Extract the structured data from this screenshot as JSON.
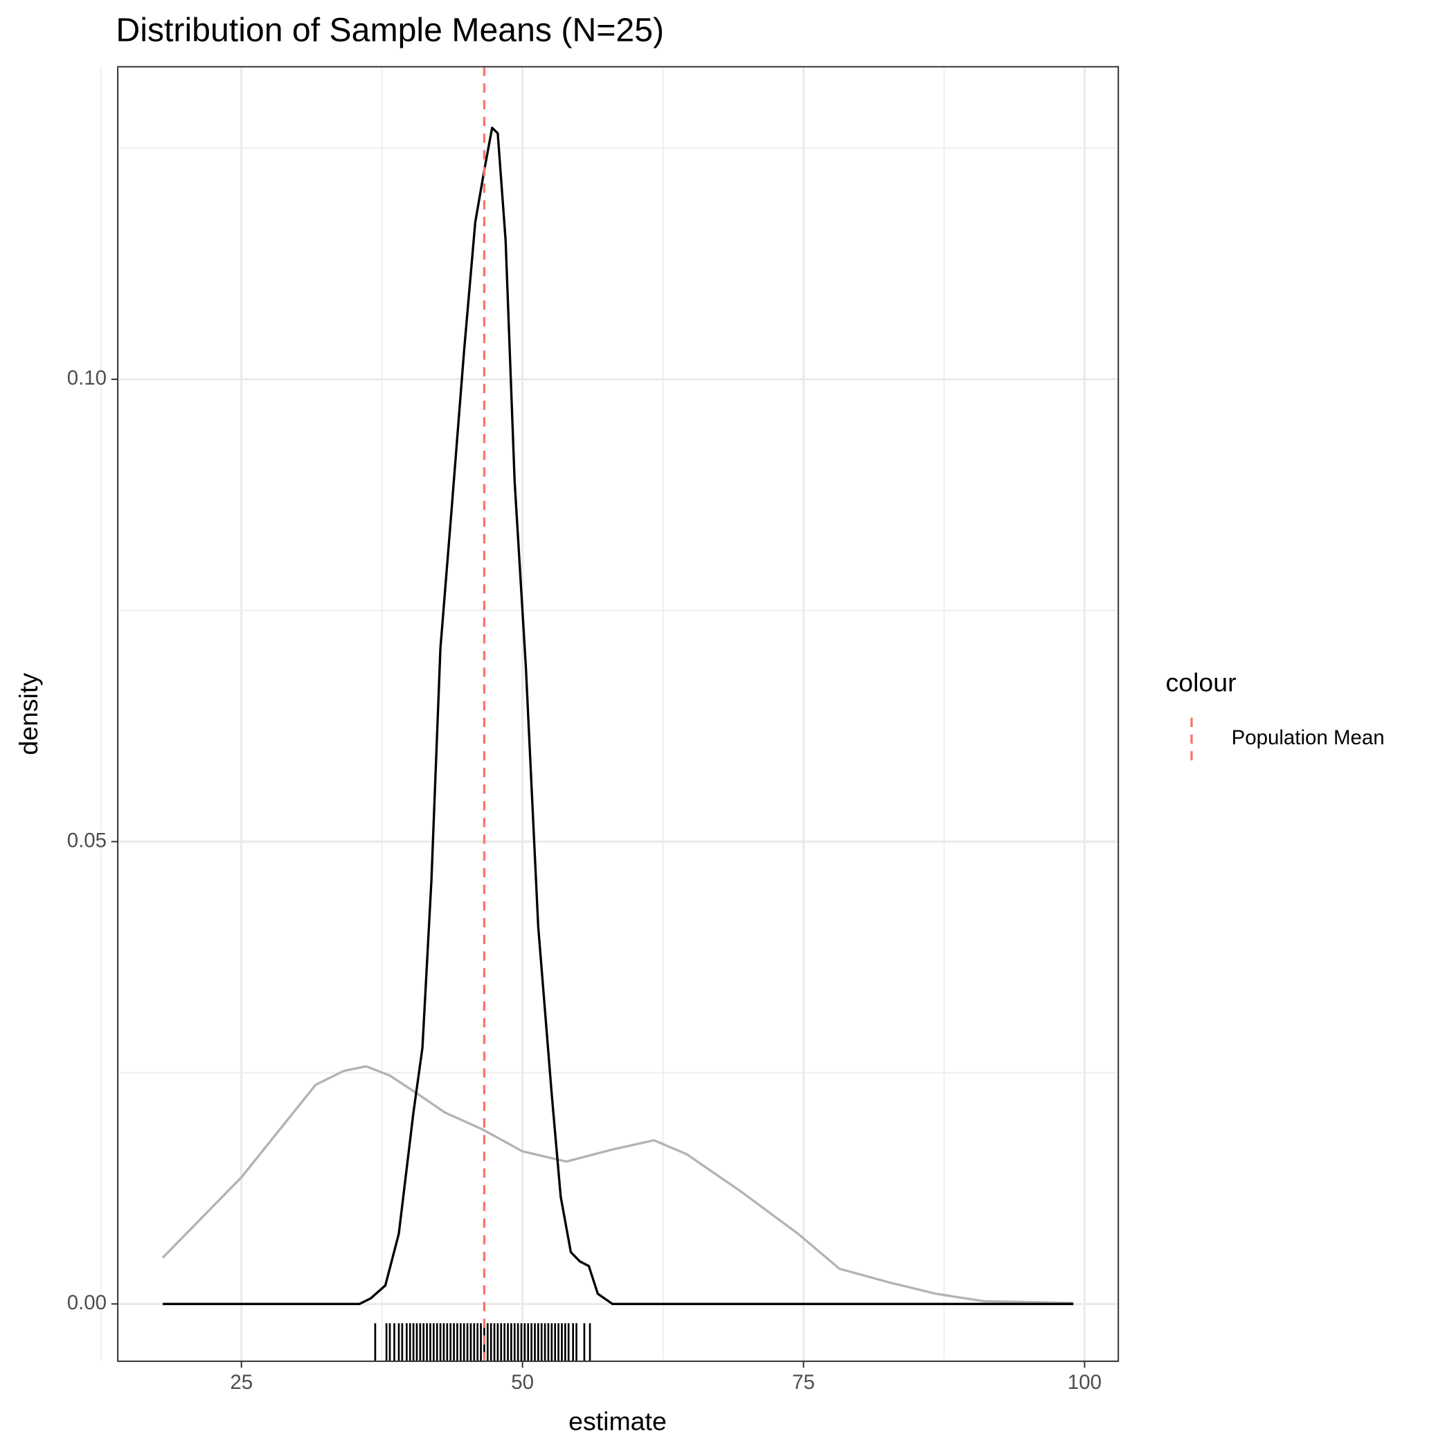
{
  "chart_data": {
    "type": "line",
    "title": "Distribution of Sample Means (N=25)",
    "x_label": "estimate",
    "y_label": "density",
    "xlim": [
      14.0,
      103.0
    ],
    "ylim": [
      -0.0062,
      0.1338
    ],
    "xticks": [
      25,
      50,
      75,
      100
    ],
    "yticks": [
      {
        "value": 0,
        "label": "0.00"
      },
      {
        "value": 0.05,
        "label": "0.05"
      },
      {
        "value": 0.1,
        "label": "0.10"
      }
    ],
    "x_minor_grid": [
      12.5,
      37.5,
      62.5,
      87.5
    ],
    "y_minor_grid": [
      0.025,
      0.075,
      0.125
    ],
    "grid": true,
    "series": [
      {
        "color": "#b3b3b3",
        "x": [
          18.0,
          21.7,
          25,
          28.3,
          31.6,
          34.1,
          36.1,
          38.2,
          40.7,
          43.1,
          46.4,
          50,
          53.9,
          58.0,
          61.7,
          64.6,
          69.5,
          74.5,
          78.2,
          82.7,
          86.8,
          91.0,
          99.0
        ],
        "values": [
          0.005,
          0.0096,
          0.0137,
          0.0187,
          0.0237,
          0.0252,
          0.0257,
          0.0247,
          0.0227,
          0.0207,
          0.0189,
          0.0165,
          0.0154,
          0.0167,
          0.0177,
          0.0162,
          0.0121,
          0.0076,
          0.0038,
          0.0023,
          0.0011,
          0.0003,
          0.0001
        ]
      },
      {
        "color": "#000000",
        "x": [
          18.0,
          35.5,
          36.5,
          37.8,
          39.0,
          40.3,
          41.1,
          41.9,
          42.7,
          43.7,
          44.8,
          45.8,
          46.6,
          47.3,
          47.8,
          48.5,
          49.3,
          50.3,
          51.4,
          52.6,
          53.4,
          54.3,
          55.1,
          55.9,
          56.7,
          58.0,
          99.0
        ],
        "values": [
          0,
          0,
          0.0006,
          0.002,
          0.0076,
          0.0207,
          0.0277,
          0.0458,
          0.0709,
          0.086,
          0.103,
          0.117,
          0.1226,
          0.1272,
          0.1266,
          0.115,
          0.089,
          0.0689,
          0.0408,
          0.0227,
          0.0116,
          0.0056,
          0.0046,
          0.0041,
          0.0011,
          0,
          0
        ]
      }
    ],
    "rug": {
      "color": "#000000",
      "values": [
        36.9,
        37.9,
        38.2,
        38.6,
        39.0,
        39.3,
        39.7,
        40.0,
        40.3,
        40.6,
        40.9,
        41.2,
        41.5,
        41.8,
        42.1,
        42.4,
        42.7,
        43.0,
        43.3,
        43.6,
        43.9,
        44.2,
        44.5,
        44.8,
        45.1,
        45.4,
        45.7,
        46.0,
        46.3,
        46.6,
        46.9,
        47.2,
        47.5,
        47.8,
        48.1,
        48.4,
        48.7,
        49.0,
        49.3,
        49.6,
        49.9,
        50.2,
        50.5,
        50.8,
        51.1,
        51.4,
        51.7,
        52.0,
        52.3,
        52.6,
        52.9,
        53.2,
        53.5,
        53.8,
        54.1,
        54.5,
        54.8,
        55.5,
        56.0
      ]
    },
    "vline": {
      "name": "Population Mean",
      "x": 46.6,
      "color": "#f8766d"
    },
    "legend_title": "colour"
  }
}
